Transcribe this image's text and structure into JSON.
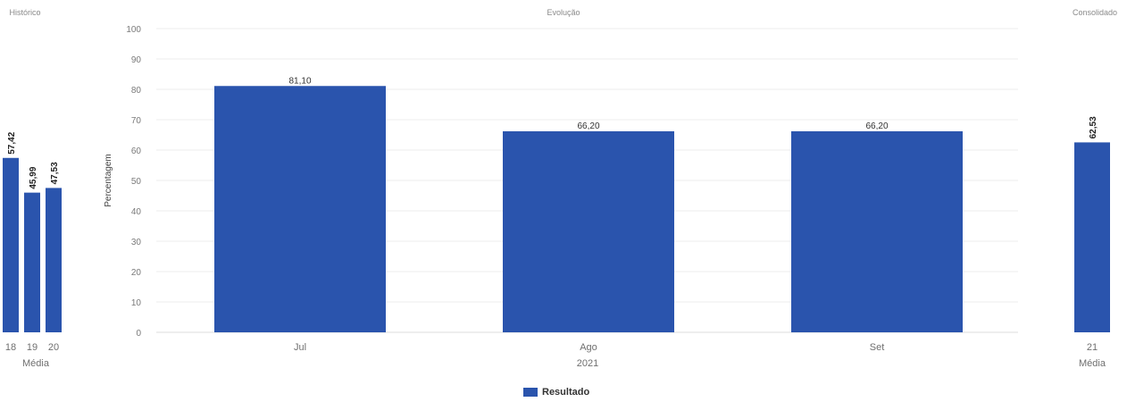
{
  "colors": {
    "bar": "#2a54ad",
    "grid": "#eeeeee"
  },
  "legend": {
    "label": "Resultado"
  },
  "chart_data": [
    {
      "id": "historico",
      "type": "bar",
      "title": "Histórico",
      "categories": [
        "18",
        "19",
        "20"
      ],
      "values": [
        57.42,
        45.99,
        47.53
      ],
      "value_labels": [
        "57,42",
        "45,99",
        "47,53"
      ],
      "group_label": "Média",
      "ylim": [
        0,
        100
      ]
    },
    {
      "id": "evolucao",
      "type": "bar",
      "title": "Evolução",
      "categories": [
        "Jul",
        "Ago",
        "Set"
      ],
      "values": [
        81.1,
        66.2,
        66.2
      ],
      "value_labels": [
        "81,10",
        "66,20",
        "66,20"
      ],
      "group_label": "2021",
      "ylabel": "Percentagem",
      "ylim": [
        0,
        100
      ],
      "yticks": [
        0,
        10,
        20,
        30,
        40,
        50,
        60,
        70,
        80,
        90,
        100
      ],
      "grid": true
    },
    {
      "id": "consolidado",
      "type": "bar",
      "title": "Consolidado",
      "categories": [
        "21"
      ],
      "values": [
        62.53
      ],
      "value_labels": [
        "62,53"
      ],
      "group_label": "Média",
      "ylim": [
        0,
        100
      ]
    }
  ]
}
